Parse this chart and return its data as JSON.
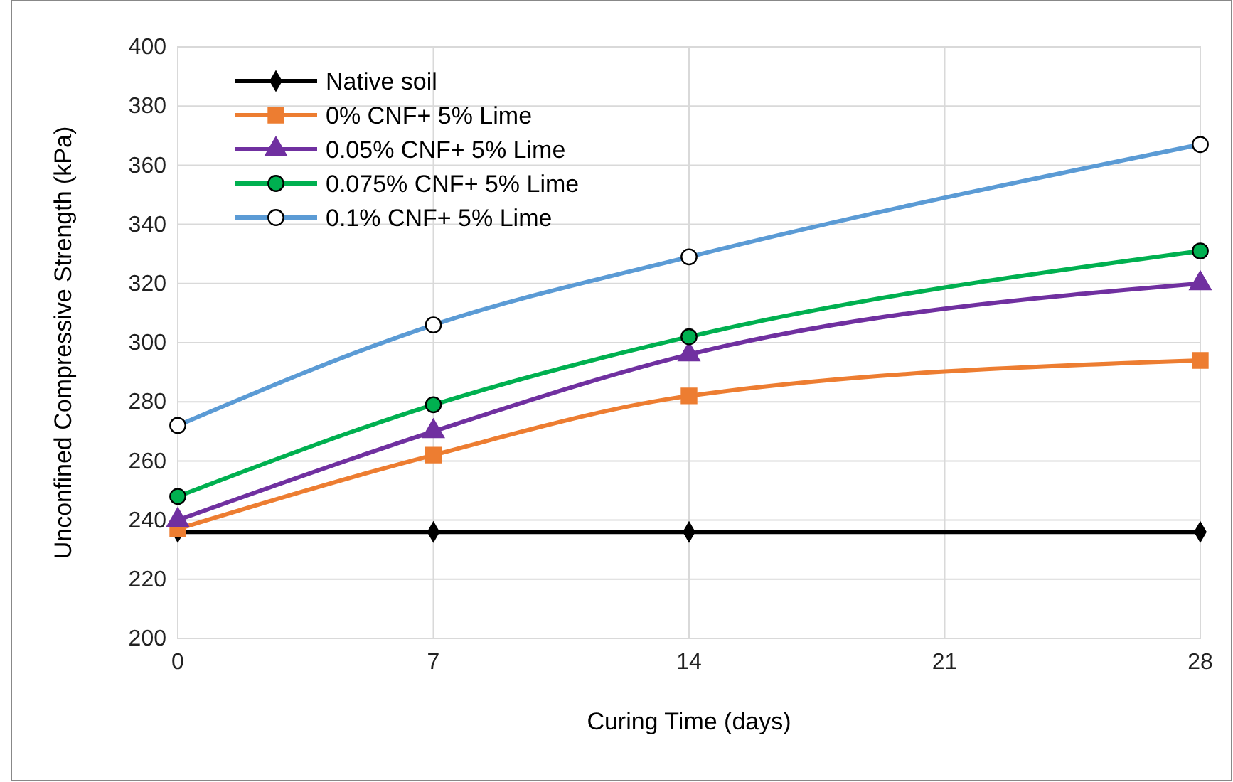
{
  "chart_data": {
    "type": "line",
    "xlabel": "Curing Time (days)",
    "ylabel": "Unconfined Compressive Strength (kPa)",
    "x": [
      0,
      7,
      14,
      28
    ],
    "xlim": [
      0,
      28
    ],
    "xticks": [
      0,
      7,
      14,
      21,
      28
    ],
    "ylim": [
      200,
      400
    ],
    "yticks": [
      200,
      220,
      240,
      260,
      280,
      300,
      320,
      340,
      360,
      380,
      400
    ],
    "grid": true,
    "legend": "top left",
    "series": [
      {
        "name": "Native soil",
        "color": "#000000",
        "marker": "diamond",
        "values": [
          236,
          236,
          236,
          236
        ]
      },
      {
        "name": "0% CNF+ 5% Lime",
        "color": "#ed7d31",
        "marker": "square",
        "values": [
          237,
          262,
          282,
          294
        ]
      },
      {
        "name": "0.05% CNF+ 5% Lime",
        "color": "#7030a0",
        "marker": "triangle",
        "values": [
          240,
          270,
          296,
          320
        ]
      },
      {
        "name": "0.075% CNF+ 5% Lime",
        "color": "#00b050",
        "marker": "circle",
        "values": [
          248,
          279,
          302,
          331
        ]
      },
      {
        "name": "0.1% CNF+ 5% Lime",
        "color": "#5b9bd5",
        "marker": "circle",
        "values": [
          272,
          306,
          329,
          367
        ]
      }
    ]
  }
}
